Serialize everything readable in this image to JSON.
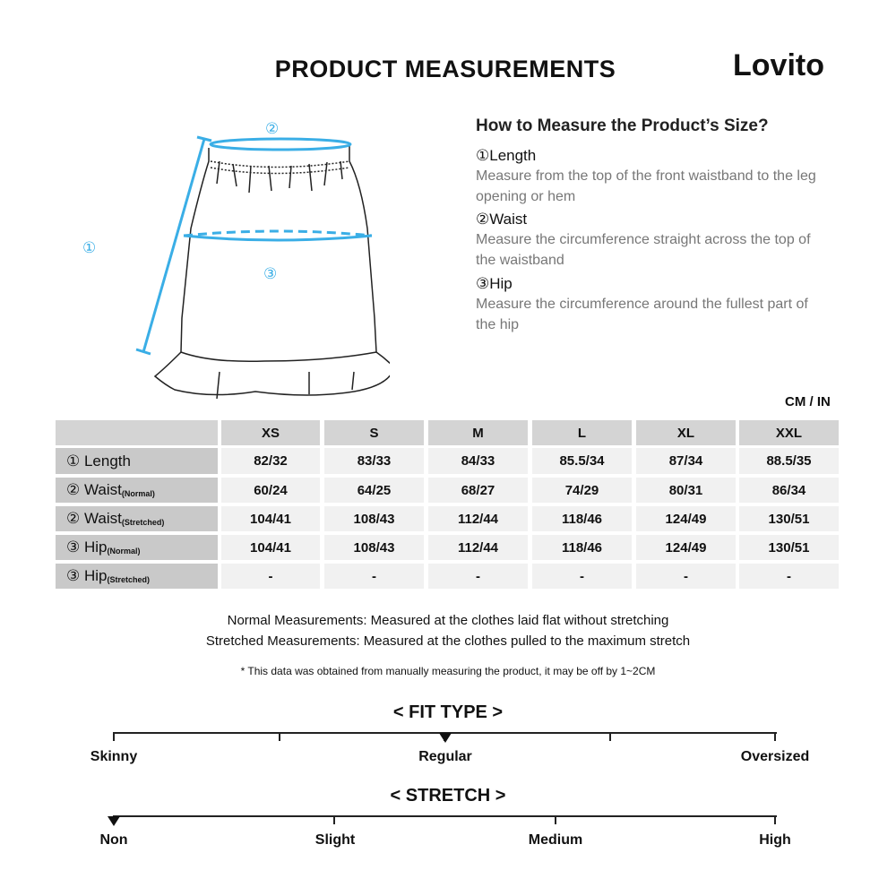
{
  "title": "PRODUCT MEASUREMENTS",
  "logo": "Lovito",
  "diagram": {
    "markers": [
      "①",
      "②",
      "③"
    ],
    "accent": "#3aaee6"
  },
  "howto": {
    "heading": "How to Measure the Product’s Size?",
    "items": [
      {
        "label": "①Length",
        "desc": "Measure from the top of the front waistband to the leg opening or hem"
      },
      {
        "label": "②Waist",
        "desc": "Measure the circumference straight across the top of the waistband"
      },
      {
        "label": "③Hip",
        "desc": "Measure the circumference around the fullest part of the hip"
      }
    ]
  },
  "unit": "CM / IN",
  "table": {
    "sizes": [
      "XS",
      "S",
      "M",
      "L",
      "XL",
      "XXL"
    ],
    "rows": [
      {
        "label": "① Length",
        "sub": "",
        "values": [
          "82/32",
          "83/33",
          "84/33",
          "85.5/34",
          "87/34",
          "88.5/35"
        ]
      },
      {
        "label": "② Waist",
        "sub": "(Normal)",
        "values": [
          "60/24",
          "64/25",
          "68/27",
          "74/29",
          "80/31",
          "86/34"
        ]
      },
      {
        "label": "② Waist",
        "sub": "(Stretched)",
        "values": [
          "104/41",
          "108/43",
          "112/44",
          "118/46",
          "124/49",
          "130/51"
        ]
      },
      {
        "label": "③ Hip",
        "sub": "(Normal)",
        "values": [
          "104/41",
          "108/43",
          "112/44",
          "118/46",
          "124/49",
          "130/51"
        ]
      },
      {
        "label": "③ Hip",
        "sub": "(Stretched)",
        "values": [
          "-",
          "-",
          "-",
          "-",
          "-",
          "-"
        ]
      }
    ]
  },
  "notes": [
    "Normal Measurements: Measured at the clothes laid flat without stretching",
    "Stretched  Measurements: Measured at the clothes pulled to the maximum stretch"
  ],
  "disclaimer": "* This data was obtained from manually measuring the product, it may be off by 1~2CM",
  "fit": {
    "title": "< FIT TYPE >",
    "labels": [
      "Skinny",
      "Regular",
      "Oversized"
    ],
    "selected": "Regular",
    "selected_position": 0.5
  },
  "stretch": {
    "title": "< STRETCH >",
    "labels": [
      "Non",
      "Slight",
      "Medium",
      "High"
    ],
    "selected": "Non",
    "selected_position": 0
  }
}
